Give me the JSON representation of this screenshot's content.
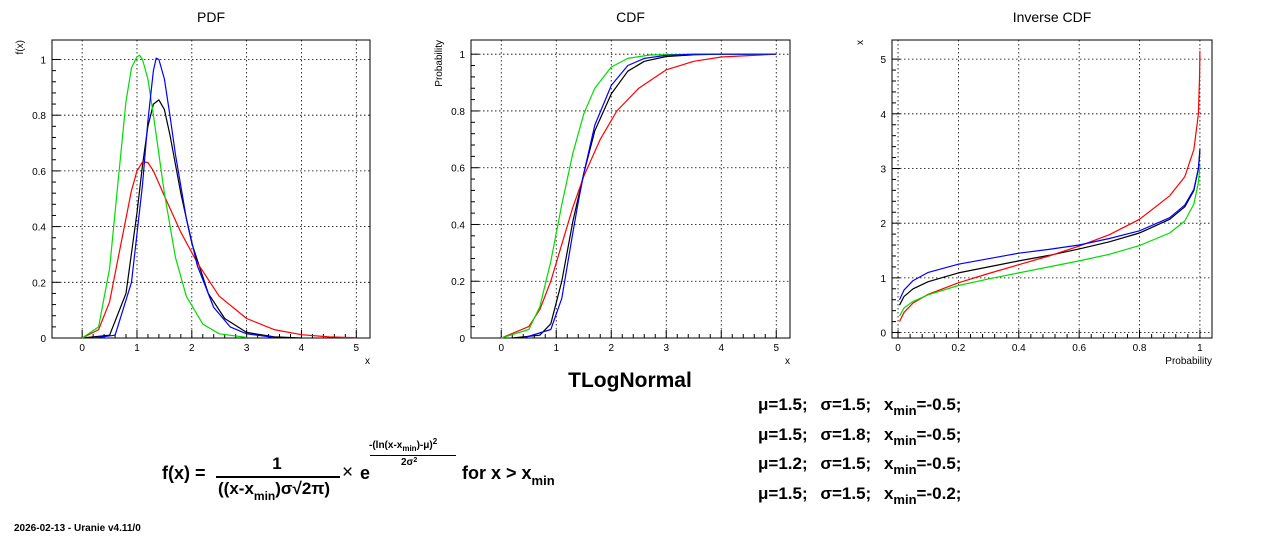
{
  "chart_data": [
    {
      "type": "line",
      "title": "PDF",
      "xlabel": "x",
      "ylabel": "f(x)",
      "xlim": [
        -0.55,
        5.25
      ],
      "ylim": [
        0,
        1.07
      ],
      "xticks": [
        0,
        1,
        2,
        3,
        4,
        5
      ],
      "yticks": [
        0,
        0.2,
        0.4,
        0.6,
        0.8,
        1
      ],
      "xticklabels": [
        "0",
        "1",
        "2",
        "3",
        "4",
        "5"
      ],
      "yticklabels": [
        "0",
        "0.2",
        "0.4",
        "0.6",
        "0.8",
        "1"
      ],
      "grid": true,
      "series": [
        {
          "color": "#000000",
          "x": [
            0,
            0.5,
            0.8,
            1.0,
            1.1,
            1.2,
            1.3,
            1.4,
            1.5,
            1.6,
            1.8,
            2.0,
            2.3,
            2.6,
            3.0,
            3.5,
            4.0
          ],
          "y": [
            0,
            0.01,
            0.16,
            0.45,
            0.62,
            0.76,
            0.84,
            0.855,
            0.82,
            0.73,
            0.52,
            0.34,
            0.16,
            0.07,
            0.02,
            0.004,
            0.0
          ]
        },
        {
          "color": "#ff0000",
          "x": [
            0,
            0.3,
            0.5,
            0.7,
            0.9,
            1.0,
            1.1,
            1.2,
            1.3,
            1.5,
            1.8,
            2.1,
            2.5,
            3.0,
            3.5,
            4.0,
            4.5,
            5.0
          ],
          "y": [
            0,
            0.03,
            0.13,
            0.33,
            0.53,
            0.6,
            0.632,
            0.63,
            0.6,
            0.51,
            0.38,
            0.27,
            0.15,
            0.07,
            0.03,
            0.012,
            0.004,
            0.001
          ]
        },
        {
          "color": "#00dd00",
          "x": [
            0,
            0.3,
            0.5,
            0.7,
            0.8,
            0.9,
            1.0,
            1.05,
            1.1,
            1.2,
            1.3,
            1.5,
            1.7,
            1.9,
            2.2,
            2.5,
            3.0
          ],
          "y": [
            0,
            0.04,
            0.25,
            0.65,
            0.85,
            0.97,
            1.01,
            1.015,
            1.0,
            0.93,
            0.8,
            0.52,
            0.29,
            0.15,
            0.05,
            0.015,
            0.002
          ]
        },
        {
          "color": "#0000ff",
          "x": [
            0.2,
            0.6,
            0.9,
            1.1,
            1.2,
            1.3,
            1.35,
            1.4,
            1.5,
            1.6,
            1.7,
            1.9,
            2.1,
            2.4,
            2.7,
            3.0,
            3.5
          ],
          "y": [
            0,
            0.01,
            0.2,
            0.55,
            0.78,
            0.96,
            1.005,
            1.0,
            0.93,
            0.8,
            0.66,
            0.43,
            0.26,
            0.11,
            0.04,
            0.015,
            0.002
          ]
        }
      ]
    },
    {
      "type": "line",
      "title": "CDF",
      "xlabel": "x",
      "ylabel": "Probability",
      "xlim": [
        -0.55,
        5.25
      ],
      "ylim": [
        0,
        1.05
      ],
      "xticks": [
        0,
        1,
        2,
        3,
        4,
        5
      ],
      "yticks": [
        0,
        0.2,
        0.4,
        0.6,
        0.8,
        1
      ],
      "xticklabels": [
        "0",
        "1",
        "2",
        "3",
        "4",
        "5"
      ],
      "yticklabels": [
        "0",
        "0.2",
        "0.4",
        "0.6",
        "0.8",
        "1"
      ],
      "grid": true,
      "series": [
        {
          "color": "#000000",
          "x": [
            0.2,
            0.7,
            0.9,
            1.1,
            1.3,
            1.5,
            1.7,
            2.0,
            2.3,
            2.6,
            3.0,
            3.5,
            4.0,
            5.0
          ],
          "y": [
            0,
            0.01,
            0.05,
            0.2,
            0.41,
            0.58,
            0.73,
            0.86,
            0.94,
            0.975,
            0.992,
            0.998,
            1.0,
            1.0
          ]
        },
        {
          "color": "#ff0000",
          "x": [
            0,
            0.5,
            0.7,
            0.9,
            1.1,
            1.3,
            1.5,
            1.8,
            2.1,
            2.5,
            3.0,
            3.5,
            4.0,
            5.0
          ],
          "y": [
            0,
            0.04,
            0.1,
            0.2,
            0.33,
            0.46,
            0.57,
            0.7,
            0.8,
            0.88,
            0.945,
            0.975,
            0.99,
            1.0
          ]
        },
        {
          "color": "#00dd00",
          "x": [
            0,
            0.5,
            0.7,
            0.9,
            1.0,
            1.1,
            1.3,
            1.5,
            1.7,
            2.0,
            2.3,
            2.7,
            3.5,
            5.0
          ],
          "y": [
            0,
            0.03,
            0.11,
            0.27,
            0.37,
            0.47,
            0.65,
            0.79,
            0.88,
            0.955,
            0.985,
            0.997,
            1.0,
            1.0
          ]
        },
        {
          "color": "#0000ff",
          "x": [
            0.4,
            0.9,
            1.1,
            1.3,
            1.4,
            1.5,
            1.7,
            2.0,
            2.3,
            2.6,
            3.0,
            3.5,
            5.0
          ],
          "y": [
            0,
            0.03,
            0.14,
            0.37,
            0.48,
            0.58,
            0.75,
            0.89,
            0.96,
            0.985,
            0.996,
            1.0,
            1.0
          ]
        }
      ]
    },
    {
      "type": "line",
      "title": "Inverse CDF",
      "xlabel": "Probability",
      "ylabel": "x",
      "xlim": [
        -0.02,
        1.04
      ],
      "ylim": [
        -0.1,
        5.35
      ],
      "xticks": [
        0,
        0.2,
        0.4,
        0.6,
        0.8,
        1
      ],
      "yticks": [
        0,
        1,
        2,
        3,
        4,
        5
      ],
      "xticklabels": [
        "0",
        "0.2",
        "0.4",
        "0.6",
        "0.8",
        "1"
      ],
      "yticklabels": [
        "0",
        "1",
        "2",
        "3",
        "4",
        "5"
      ],
      "grid": true,
      "series": [
        {
          "color": "#000000",
          "x": [
            0.005,
            0.02,
            0.05,
            0.1,
            0.2,
            0.3,
            0.4,
            0.5,
            0.6,
            0.7,
            0.8,
            0.9,
            0.95,
            0.98,
            0.995,
            1.0
          ],
          "y": [
            0.5,
            0.66,
            0.8,
            0.93,
            1.09,
            1.2,
            1.31,
            1.41,
            1.53,
            1.66,
            1.82,
            2.07,
            2.3,
            2.6,
            3.0,
            3.35
          ]
        },
        {
          "color": "#ff0000",
          "x": [
            0.005,
            0.02,
            0.05,
            0.1,
            0.2,
            0.3,
            0.4,
            0.5,
            0.6,
            0.7,
            0.8,
            0.9,
            0.95,
            0.98,
            0.995,
            0.999,
            1.0
          ],
          "y": [
            0.2,
            0.37,
            0.54,
            0.7,
            0.91,
            1.08,
            1.24,
            1.4,
            1.58,
            1.79,
            2.07,
            2.5,
            2.85,
            3.35,
            4.0,
            4.7,
            5.15
          ]
        },
        {
          "color": "#00dd00",
          "x": [
            0.005,
            0.02,
            0.05,
            0.1,
            0.2,
            0.3,
            0.4,
            0.5,
            0.6,
            0.7,
            0.8,
            0.9,
            0.95,
            0.98,
            0.995,
            1.0
          ],
          "y": [
            0.3,
            0.45,
            0.57,
            0.69,
            0.86,
            0.98,
            1.09,
            1.2,
            1.31,
            1.43,
            1.59,
            1.82,
            2.04,
            2.35,
            2.75,
            3.05
          ]
        },
        {
          "color": "#0000ff",
          "x": [
            0.005,
            0.02,
            0.05,
            0.1,
            0.2,
            0.3,
            0.4,
            0.5,
            0.6,
            0.7,
            0.8,
            0.9,
            0.95,
            0.98,
            0.995,
            1.0
          ],
          "y": [
            0.6,
            0.78,
            0.95,
            1.1,
            1.25,
            1.35,
            1.45,
            1.52,
            1.6,
            1.72,
            1.86,
            2.1,
            2.33,
            2.62,
            3.0,
            3.3
          ]
        }
      ]
    }
  ],
  "main_title": "TLogNormal",
  "params": [
    {
      "color": "#000000",
      "mu": "μ=1.5;",
      "sigma": "σ=1.5;",
      "x": "x",
      "sub": "min",
      "val": "=-0.5;"
    },
    {
      "color": "#ff0000",
      "mu": "μ=1.5;",
      "sigma": "σ=1.8;",
      "x": "x",
      "sub": "min",
      "val": "=-0.5;"
    },
    {
      "color": "#00dd00",
      "mu": "μ=1.2;",
      "sigma": "σ=1.5;",
      "x": "x",
      "sub": "min",
      "val": "=-0.5;"
    },
    {
      "color": "#0000ff",
      "mu": "μ=1.5;",
      "sigma": "σ=1.5;",
      "x": "x",
      "sub": "min",
      "val": "=-0.2;"
    }
  ],
  "formula": {
    "lhs": "f(x) =",
    "numerator": "1",
    "den_a": "((x-x",
    "den_sub": "min",
    "den_b": ")σ√2π)",
    "times": "×",
    "e": "e",
    "exp_a": "-(ln(x-x",
    "exp_sub": "min",
    "exp_b": ")-μ)",
    "exp_pow": "2",
    "exp_den": "2σ",
    "exp_den_pow": "2",
    "rhs": "for x > x",
    "rhs_sub": "min"
  },
  "footer": "2026-02-13 - Uranie v4.11/0"
}
